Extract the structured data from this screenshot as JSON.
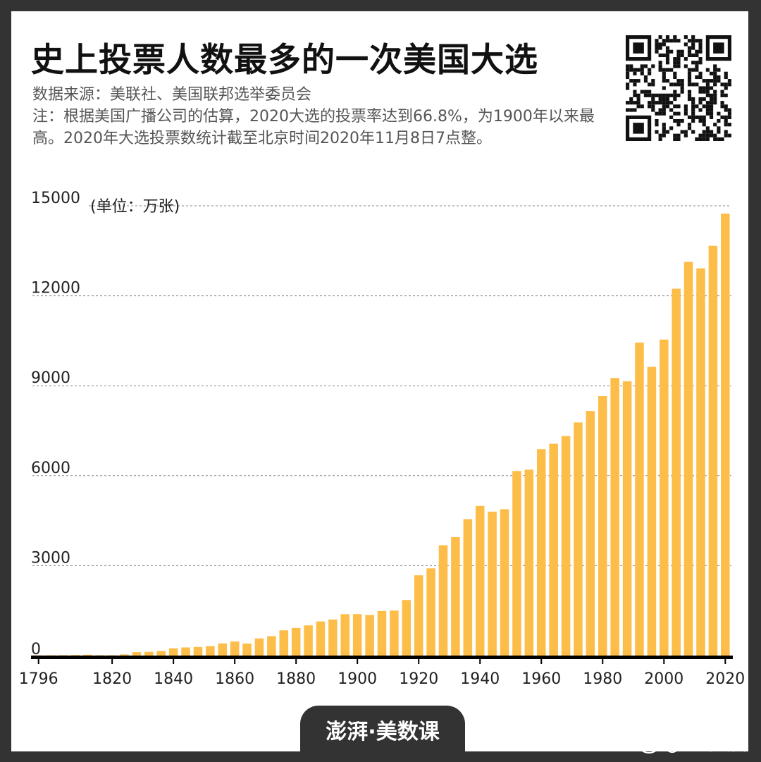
{
  "title": "史上投票人数最多的一次美国大选",
  "source": "数据来源：美联社、美国联邦选举委员会",
  "note": "注：根据美国广播公司的估算，2020大选的投票率达到66.8%，为1900年以来最高。2020年大选投票数统计截至北京时间2020年11月8日7点整。",
  "brand": "澎湃·美数课",
  "weibo": "@澎湃新闻",
  "qr_icon": "qr-code-icon",
  "colors": {
    "bar": "#FDBD49",
    "axis": "#000000",
    "grid": "#888888",
    "text": "#222222"
  },
  "chart_data": {
    "type": "bar",
    "title": "史上投票人数最多的一次美国大选",
    "ylabel": "(单位：万张)",
    "xlabel": "",
    "ylim": [
      0,
      15000
    ],
    "yticks": [
      0,
      3000,
      6000,
      9000,
      12000,
      15000
    ],
    "xticks": [
      "1796",
      "1820",
      "1840",
      "1860",
      "1880",
      "1900",
      "1920",
      "1940",
      "1960",
      "1980",
      "2000",
      "2020"
    ],
    "grid": true,
    "categories": [
      1796,
      1800,
      1804,
      1808,
      1812,
      1816,
      1820,
      1824,
      1828,
      1832,
      1836,
      1840,
      1844,
      1848,
      1852,
      1856,
      1860,
      1864,
      1868,
      1872,
      1876,
      1880,
      1884,
      1888,
      1892,
      1896,
      1900,
      1904,
      1908,
      1912,
      1916,
      1920,
      1924,
      1928,
      1932,
      1936,
      1940,
      1944,
      1948,
      1952,
      1956,
      1960,
      1964,
      1968,
      1972,
      1976,
      1980,
      1984,
      1988,
      1992,
      1996,
      2000,
      2004,
      2008,
      2012,
      2016,
      2020
    ],
    "values": [
      7,
      9,
      14,
      19,
      28,
      11,
      11,
      37,
      115,
      124,
      151,
      240,
      270,
      287,
      316,
      405,
      469,
      401,
      572,
      647,
      842,
      921,
      1006,
      1139,
      1203,
      1380,
      1382,
      1354,
      1487,
      1503,
      1853,
      2677,
      2909,
      3680,
      3950,
      4550,
      4990,
      4800,
      4880,
      6155,
      6200,
      6883,
      7064,
      7321,
      7775,
      8155,
      8652,
      9258,
      9148,
      10440,
      9630,
      10540,
      12236,
      13131,
      12915,
      13667,
      14740
    ]
  }
}
